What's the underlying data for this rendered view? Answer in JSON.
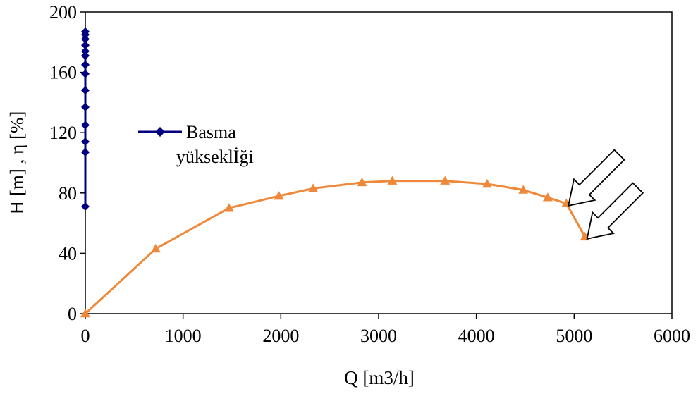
{
  "chart_data": {
    "type": "line",
    "xlabel": "Q [m3/h]",
    "ylabel": "H [m] , η [%]",
    "xlim": [
      0,
      6000
    ],
    "ylim": [
      0,
      200
    ],
    "xticks": [
      0,
      1000,
      2000,
      3000,
      4000,
      5000,
      6000
    ],
    "yticks": [
      0,
      40,
      80,
      120,
      160,
      200
    ],
    "grid": false,
    "legend": {
      "placement": "center-left",
      "entries": [
        "Basma",
        "yükseklİği"
      ]
    },
    "series": [
      {
        "name": "Basma yükseklİği",
        "color": "#000080",
        "marker": "diamond",
        "x": [
          0,
          0,
          0,
          0,
          0,
          0,
          0,
          0,
          0,
          0,
          0,
          0,
          0,
          0
        ],
        "y": [
          71,
          107,
          114,
          125,
          137,
          148,
          159,
          165,
          171,
          174,
          178,
          182,
          185,
          187
        ]
      },
      {
        "name": "",
        "color": "#f0883a",
        "marker": "triangle",
        "x": [
          0,
          720,
          1470,
          1980,
          2330,
          2830,
          3140,
          3680,
          4110,
          4480,
          4730,
          4920,
          5110
        ],
        "y": [
          0,
          43,
          70,
          78,
          83,
          87,
          88,
          88,
          86,
          82,
          77,
          73,
          51
        ]
      }
    ],
    "annotations": [
      {
        "type": "arrow",
        "shape": "hollow-block-arrow",
        "direction": "down-left",
        "points_to": [
          4920,
          73
        ]
      },
      {
        "type": "arrow",
        "shape": "hollow-block-arrow",
        "direction": "down-left",
        "points_to": [
          5110,
          51
        ]
      }
    ]
  }
}
